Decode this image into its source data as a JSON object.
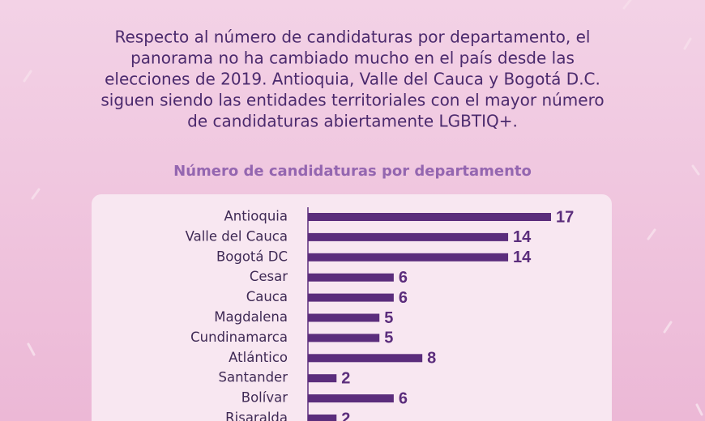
{
  "chart_data": {
    "type": "hbar",
    "description": [
      "Respecto al número de candidaturas por departamento, el",
      "panorama no ha cambiado mucho en el país desde las",
      "elecciones de 2019. Antioquia, Valle del Cauca y Bogotá D.C.",
      "siguen siendo las entidades territoriales con el mayor número",
      "de candidaturas abiertamente LGBTIQ+."
    ],
    "title": "Número de candidaturas por departamento",
    "categories": [
      "Antioquia",
      "Valle del Cauca",
      "Bogotá DC",
      "Cesar",
      "Cauca",
      "Magdalena",
      "Cundinamarca",
      "Atlántico",
      "Santander",
      "Bolívar",
      "Risaralda"
    ],
    "values": [
      17,
      14,
      14,
      6,
      6,
      5,
      5,
      8,
      2,
      6,
      2
    ],
    "color": "#5b2d7c"
  }
}
